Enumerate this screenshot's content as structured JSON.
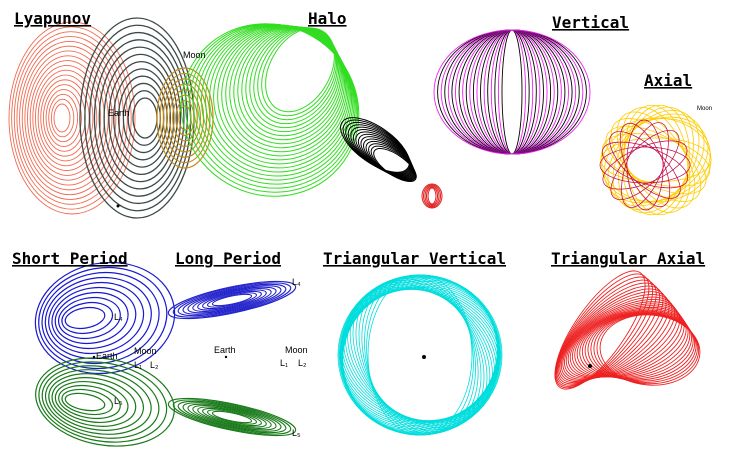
{
  "panels": [
    {
      "title": "Lyapunov",
      "labels": [
        "Moon",
        "Earth"
      ]
    },
    {
      "title": "Halo",
      "labels": []
    },
    {
      "title": "Vertical",
      "labels": []
    },
    {
      "title": "Axial",
      "labels": [
        "Moon"
      ]
    },
    {
      "title": "Short Period",
      "labels": [
        "L₄",
        "Earth",
        "Moon",
        "L₁",
        "L₂",
        "L₅"
      ]
    },
    {
      "title": "Long Period",
      "labels": [
        "L₄",
        "Earth",
        "Moon",
        "L₁",
        "L₂",
        "L₅"
      ]
    },
    {
      "title": "Triangular Vertical",
      "labels": []
    },
    {
      "title": "Triangular Axial",
      "labels": []
    }
  ]
}
